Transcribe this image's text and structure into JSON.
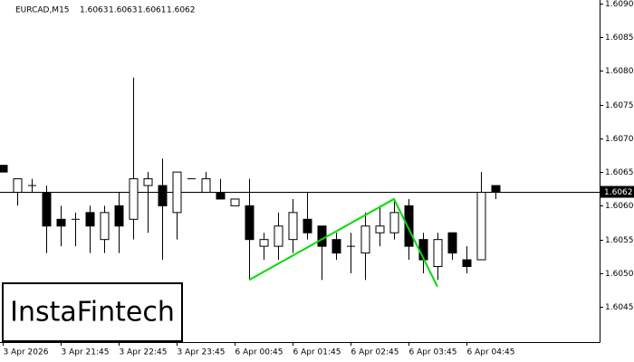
{
  "chart_data": {
    "type": "candlestick",
    "symbol": "EURCAD,M15",
    "categories": [
      "3 Apr 2026",
      null,
      null,
      null,
      "3 Apr 21:45",
      null,
      null,
      null,
      "3 Apr 22:45",
      null,
      null,
      null,
      "3 Apr 23:45",
      null,
      null,
      null,
      "6 Apr 00:45",
      null,
      null,
      null,
      "6 Apr 01:45",
      null,
      null,
      null,
      "6 Apr 02:45",
      null,
      null,
      null,
      "6 Apr 03:45",
      null,
      null,
      null,
      "6 Apr 04:45",
      null,
      null
    ],
    "open": [
      1.6066,
      1.6062,
      1.6063,
      1.6062,
      1.6058,
      1.6058,
      1.6059,
      1.6055,
      1.606,
      1.6058,
      1.6063,
      1.6063,
      1.6059,
      1.6064,
      1.6062,
      1.6062,
      1.606,
      1.606,
      1.6054,
      1.6054,
      1.6055,
      1.6058,
      1.6057,
      1.6055,
      1.6054,
      1.6053,
      1.6056,
      1.6056,
      1.606,
      1.6055,
      1.6051,
      1.6056,
      1.6052,
      1.6052,
      1.6063
    ],
    "high": [
      1.6066,
      1.6064,
      1.6064,
      1.6063,
      1.606,
      1.6059,
      1.606,
      1.606,
      1.6062,
      1.6079,
      1.6065,
      1.6067,
      1.6065,
      1.6064,
      1.6065,
      1.6064,
      1.6061,
      1.6064,
      1.6056,
      1.6059,
      1.6061,
      1.6062,
      1.6057,
      1.6056,
      1.6056,
      1.6059,
      1.606,
      1.6061,
      1.6061,
      1.6056,
      1.6056,
      1.6056,
      1.6054,
      1.6065,
      1.6063
    ],
    "low": [
      1.6065,
      1.606,
      1.6062,
      1.6053,
      1.6054,
      1.6054,
      1.6053,
      1.6053,
      1.6053,
      1.6055,
      1.6056,
      1.6052,
      1.6055,
      1.6064,
      1.6062,
      1.6061,
      1.606,
      1.6049,
      1.6052,
      1.6052,
      1.6053,
      1.6055,
      1.6049,
      1.6052,
      1.605,
      1.6049,
      1.6054,
      1.6055,
      1.6052,
      1.605,
      1.6049,
      1.6052,
      1.605,
      1.6052,
      1.6061
    ],
    "close": [
      1.6065,
      1.6064,
      1.6063,
      1.6057,
      1.6057,
      1.6058,
      1.6057,
      1.6059,
      1.6057,
      1.6064,
      1.6064,
      1.606,
      1.6065,
      1.6064,
      1.6064,
      1.6061,
      1.6061,
      1.6055,
      1.6055,
      1.6057,
      1.6059,
      1.6056,
      1.6054,
      1.6053,
      1.6054,
      1.6057,
      1.6057,
      1.6059,
      1.6054,
      1.6052,
      1.6055,
      1.6053,
      1.6051,
      1.6062,
      1.6062
    ],
    "up_color": "#ffffff",
    "down_color": "#000000",
    "ylim": [
      1.60398,
      1.60905
    ],
    "yticks": [
      {
        "value": 1.609,
        "label": "1.6090"
      },
      1.6085,
      {
        "value": 1.608,
        "label": "1.6080"
      },
      1.6075,
      {
        "value": 1.607,
        "label": "1.6070"
      },
      1.6065,
      {
        "value": 1.606,
        "label": "1.6060"
      },
      1.6055,
      {
        "value": 1.605,
        "label": "1.6050"
      },
      1.6045
    ],
    "current_price": 1.6062,
    "pattern": {
      "color": "#00dd00",
      "x": [
        17,
        27,
        30
      ],
      "values": [
        1.6049,
        1.6061,
        1.6048
      ]
    },
    "watermark": "InstaFintech"
  }
}
